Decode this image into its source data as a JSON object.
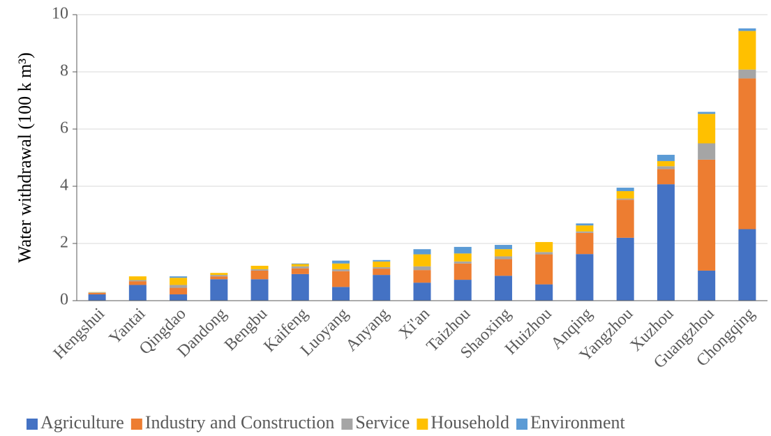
{
  "chart_data": {
    "type": "stacked_bar",
    "y_label": "Water withdrawal (100 k m³)",
    "categories": [
      "Hengshui",
      "Yantai",
      "Qingdao",
      "Dandong",
      "Bengbu",
      "Kaifeng",
      "Luoyang",
      "Anyang",
      "Xi'an",
      "Taizhou",
      "Shaoxing",
      "Huizhou",
      "Anqing",
      "Yangzhou",
      "Xuzhou",
      "Guangzhou",
      "Chongqing"
    ],
    "series": [
      {
        "name": "Agriculture",
        "color": "#4472c4",
        "values": [
          0.22,
          0.55,
          0.22,
          0.75,
          0.75,
          0.93,
          0.48,
          0.9,
          0.63,
          0.73,
          0.87,
          0.57,
          1.63,
          2.2,
          4.07,
          1.05,
          2.5
        ]
      },
      {
        "name": "Industry and Construction",
        "color": "#ed7d31",
        "values": [
          0.05,
          0.13,
          0.23,
          0.1,
          0.3,
          0.2,
          0.55,
          0.22,
          0.44,
          0.57,
          0.58,
          1.05,
          0.74,
          1.33,
          0.53,
          3.88,
          5.27
        ]
      },
      {
        "name": "Service",
        "color": "#a5a5a5",
        "values": [
          0.02,
          0.04,
          0.1,
          0.05,
          0.05,
          0.07,
          0.07,
          0.05,
          0.13,
          0.07,
          0.1,
          0.08,
          0.05,
          0.04,
          0.1,
          0.57,
          0.31
        ]
      },
      {
        "name": "Household",
        "color": "#ffc000",
        "values": [
          0.01,
          0.13,
          0.25,
          0.07,
          0.12,
          0.08,
          0.2,
          0.2,
          0.42,
          0.28,
          0.25,
          0.35,
          0.21,
          0.26,
          0.18,
          1.03,
          1.35
        ]
      },
      {
        "name": "Environment",
        "color": "#5b9bd5",
        "values": [
          0,
          0,
          0.05,
          0,
          0,
          0.02,
          0.1,
          0.05,
          0.18,
          0.23,
          0.15,
          0,
          0.07,
          0.12,
          0.22,
          0.07,
          0.09
        ]
      }
    ],
    "ylim": [
      0,
      10
    ],
    "yticks": [
      0,
      2,
      4,
      6,
      8,
      10
    ],
    "grid": true,
    "legend": "bottom"
  }
}
